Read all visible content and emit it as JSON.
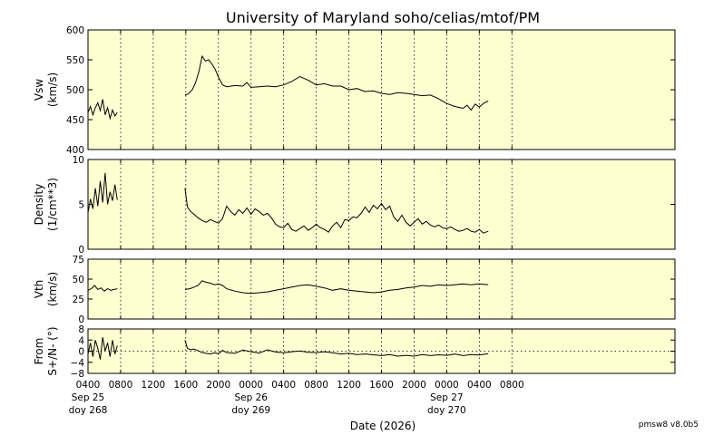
{
  "chart_data": {
    "type": "line",
    "title": "University of Maryland  soho/celias/mtof/PM",
    "xlabel": "Date (2026)",
    "version": "pmsw8 v8.0b5",
    "x_range_hours": [
      4,
      76
    ],
    "x_ticks": [
      {
        "h": 4,
        "time": "0400",
        "date": "Sep 25",
        "doy": "doy 268"
      },
      {
        "h": 8,
        "time": "0800"
      },
      {
        "h": 12,
        "time": "1200"
      },
      {
        "h": 16,
        "time": "1600"
      },
      {
        "h": 20,
        "time": "2000"
      },
      {
        "h": 24,
        "time": "0000",
        "date": "Sep 26",
        "doy": "doy 269"
      },
      {
        "h": 28,
        "time": "0400"
      },
      {
        "h": 32,
        "time": "0800"
      },
      {
        "h": 36,
        "time": "1200"
      },
      {
        "h": 40,
        "time": "1600"
      },
      {
        "h": 44,
        "time": "2000"
      },
      {
        "h": 48,
        "time": "0000",
        "date": "Sep 27",
        "doy": "doy 270"
      },
      {
        "h": 52,
        "time": "0400"
      },
      {
        "h": 56,
        "time": "0800"
      }
    ],
    "panels": [
      {
        "key": "vsw",
        "ylabel": [
          "Vsw",
          "(km/s)"
        ],
        "ylim": [
          400,
          600
        ],
        "yticks": [
          400,
          450,
          500,
          550,
          600
        ],
        "ytick_labels": [
          "400",
          "450",
          "500",
          "550",
          "600"
        ],
        "zero_line": false,
        "segments": [
          {
            "t": [
              4.0,
              4.3,
              4.6,
              4.9,
              5.2,
              5.5,
              5.8,
              6.1,
              6.4,
              6.7,
              7.0,
              7.3,
              7.6
            ],
            "v": [
              462,
              472,
              458,
              470,
              478,
              465,
              484,
              458,
              470,
              452,
              466,
              456,
              462
            ]
          },
          {
            "t": [
              15.9,
              16.3,
              16.8,
              17.2,
              17.6,
              18.0,
              18.4,
              18.8,
              19.2,
              19.6,
              20.0,
              20.5,
              21.0,
              22.0,
              23.0,
              23.5,
              24.0,
              25.0,
              26.0,
              27.0,
              28.0,
              29.0,
              30.0,
              31.0,
              32.0,
              33.0,
              34.0,
              35.0,
              36.0,
              37.0,
              38.0,
              39.0,
              40.0,
              41.0,
              42.0,
              43.0,
              44.0,
              45.0,
              46.0,
              47.0,
              48.0,
              49.0,
              50.0,
              50.5,
              51.0,
              51.5,
              52.0,
              52.6,
              53.1
            ],
            "v": [
              491,
              493,
              500,
              512,
              530,
              556,
              548,
              550,
              543,
              534,
              521,
              508,
              505,
              507,
              506,
              512,
              504,
              505,
              506,
              505,
              508,
              514,
              522,
              516,
              508,
              510,
              506,
              506,
              500,
              502,
              497,
              498,
              494,
              492,
              495,
              494,
              492,
              490,
              491,
              485,
              477,
              472,
              469,
              474,
              466,
              476,
              471,
              478,
              481
            ]
          }
        ]
      },
      {
        "key": "density",
        "ylabel": [
          "Density",
          "(1/cm**3)"
        ],
        "ylim": [
          0,
          10
        ],
        "yticks": [
          0,
          5,
          10
        ],
        "ytick_labels": [
          "0",
          "5",
          "10"
        ],
        "zero_line": false,
        "segments": [
          {
            "t": [
              4.0,
              4.3,
              4.6,
              4.9,
              5.2,
              5.5,
              5.8,
              6.1,
              6.4,
              6.7,
              7.0,
              7.3,
              7.6
            ],
            "v": [
              4.1,
              5.6,
              4.5,
              6.8,
              4.8,
              7.6,
              5.2,
              8.5,
              5.0,
              6.4,
              5.4,
              7.2,
              5.5
            ]
          },
          {
            "t": [
              15.9,
              16.2,
              16.6,
              17.0,
              17.5,
              18.0,
              18.5,
              19.0,
              19.5,
              20.0,
              20.5,
              21.0,
              21.5,
              22.0,
              22.5,
              23.0,
              23.5,
              24.0,
              24.5,
              25.0,
              25.5,
              26.0,
              26.5,
              27.0,
              27.5,
              28.0,
              28.5,
              29.0,
              29.5,
              30.0,
              30.5,
              31.0,
              31.5,
              32.0,
              32.5,
              33.0,
              33.5,
              34.0,
              34.5,
              35.0,
              35.5,
              36.0,
              36.5,
              37.0,
              37.5,
              38.0,
              38.5,
              39.0,
              39.5,
              40.0,
              40.5,
              41.0,
              41.5,
              42.0,
              42.5,
              43.0,
              43.5,
              44.0,
              44.5,
              45.0,
              45.5,
              46.0,
              46.5,
              47.0,
              47.5,
              48.0,
              48.5,
              49.0,
              49.5,
              50.0,
              50.5,
              51.0,
              51.5,
              52.0,
              52.5,
              53.1
            ],
            "v": [
              6.8,
              4.7,
              4.2,
              3.9,
              3.5,
              3.2,
              3.0,
              3.3,
              3.1,
              2.9,
              3.4,
              4.8,
              4.2,
              3.8,
              4.4,
              4.0,
              4.6,
              3.9,
              4.5,
              4.2,
              3.8,
              4.0,
              3.5,
              2.8,
              2.5,
              2.4,
              2.9,
              2.2,
              2.0,
              2.3,
              2.6,
              2.1,
              2.4,
              2.8,
              2.4,
              2.2,
              1.9,
              2.6,
              3.0,
              2.4,
              3.3,
              3.2,
              3.6,
              3.5,
              4.0,
              4.7,
              4.1,
              4.9,
              4.5,
              5.1,
              4.4,
              4.8,
              3.6,
              3.1,
              3.8,
              3.0,
              2.6,
              3.0,
              3.4,
              2.8,
              3.1,
              2.7,
              2.5,
              2.7,
              2.4,
              2.3,
              2.5,
              2.2,
              2.0,
              2.1,
              2.3,
              2.0,
              1.9,
              2.2,
              1.8,
              2.0
            ]
          }
        ]
      },
      {
        "key": "vth",
        "ylabel": [
          "Vth",
          "(km/s)"
        ],
        "ylim": [
          0,
          75
        ],
        "yticks": [
          0,
          25,
          50,
          75
        ],
        "ytick_labels": [
          "0",
          "25",
          "50",
          "75"
        ],
        "zero_line": false,
        "segments": [
          {
            "t": [
              4.0,
              4.4,
              4.8,
              5.2,
              5.6,
              6.0,
              6.4,
              6.8,
              7.2,
              7.6
            ],
            "v": [
              36,
              38,
              42,
              37,
              39,
              35,
              38,
              36,
              37,
              38
            ]
          },
          {
            "t": [
              15.9,
              16.5,
              17.0,
              17.5,
              18.0,
              18.5,
              19.0,
              19.5,
              20.0,
              20.5,
              21.0,
              22.0,
              23.0,
              24.0,
              25.0,
              26.0,
              27.0,
              28.0,
              29.0,
              30.0,
              31.0,
              32.0,
              33.0,
              34.0,
              35.0,
              36.0,
              37.0,
              38.0,
              39.0,
              40.0,
              41.0,
              42.0,
              43.0,
              44.0,
              45.0,
              46.0,
              47.0,
              48.0,
              49.0,
              50.0,
              51.0,
              52.0,
              53.1
            ],
            "v": [
              37,
              38,
              40,
              42,
              48,
              46,
              45,
              43,
              44,
              42,
              38,
              35,
              33,
              32,
              33,
              34,
              36,
              38,
              40,
              42,
              43,
              41,
              39,
              36,
              38,
              36,
              35,
              34,
              33,
              34,
              36,
              37,
              39,
              40,
              42,
              41,
              43,
              42,
              43,
              44,
              43,
              44,
              43
            ]
          }
        ]
      },
      {
        "key": "from",
        "ylabel": [
          "From",
          "S+/N- (°)"
        ],
        "ylim": [
          -8,
          8
        ],
        "yticks": [
          -8,
          -4,
          0,
          4,
          8
        ],
        "ytick_labels": [
          "−8",
          "−4",
          "0",
          "4",
          "8"
        ],
        "zero_line": true,
        "segments": [
          {
            "t": [
              4.0,
              4.3,
              4.6,
              4.9,
              5.2,
              5.5,
              5.8,
              6.1,
              6.4,
              6.7,
              7.0,
              7.3,
              7.6
            ],
            "v": [
              -1,
              3,
              -2,
              4,
              1,
              -3,
              5,
              0,
              3,
              -2,
              4,
              -1,
              2
            ]
          },
          {
            "t": [
              15.9,
              16.2,
              16.6,
              17.0,
              17.5,
              18.0,
              18.5,
              19.0,
              19.5,
              20.0,
              20.5,
              21.0,
              22.0,
              23.0,
              24.0,
              25.0,
              26.0,
              27.0,
              28.0,
              29.0,
              30.0,
              31.0,
              32.0,
              33.0,
              34.0,
              35.0,
              36.0,
              37.0,
              38.0,
              39.0,
              40.0,
              41.0,
              42.0,
              43.0,
              44.0,
              45.0,
              46.0,
              47.0,
              48.0,
              49.0,
              50.0,
              51.0,
              52.0,
              53.1
            ],
            "v": [
              4,
              1,
              0.5,
              0.8,
              0.2,
              -0.5,
              -0.8,
              -1,
              -0.6,
              -0.9,
              0.3,
              -0.5,
              -0.8,
              0.4,
              -0.2,
              -0.7,
              0.5,
              -0.3,
              -0.6,
              -0.2,
              0.1,
              -0.4,
              -0.5,
              -0.2,
              -0.6,
              -1,
              -0.8,
              -1.2,
              -1,
              -1.3,
              -1.6,
              -1.2,
              -1.8,
              -1.5,
              -1.8,
              -1.2,
              -1.6,
              -1.3,
              -1.5,
              -1,
              -1.6,
              -1.2,
              -1.4,
              -0.9
            ]
          }
        ]
      }
    ]
  }
}
